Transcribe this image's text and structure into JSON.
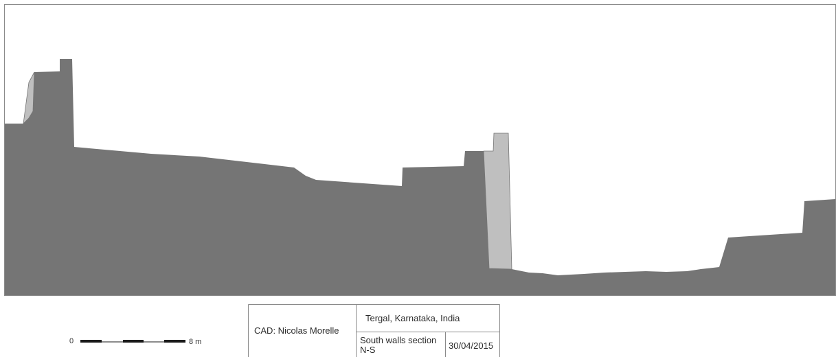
{
  "colors": {
    "section_fill": "#757575",
    "wall_highlight": "#bfbfbf",
    "frame_stroke": "#8a8a8a",
    "ink": "#1a1a1a"
  },
  "scale_bar": {
    "start_label": "0",
    "end_label": "8 m"
  },
  "title_block": {
    "author": "CAD: Nicolas Morelle",
    "location": "Tergal, Karnataka, India",
    "section_line1": "South walls section",
    "section_line2": "N-S",
    "date": "30/04/2015"
  }
}
